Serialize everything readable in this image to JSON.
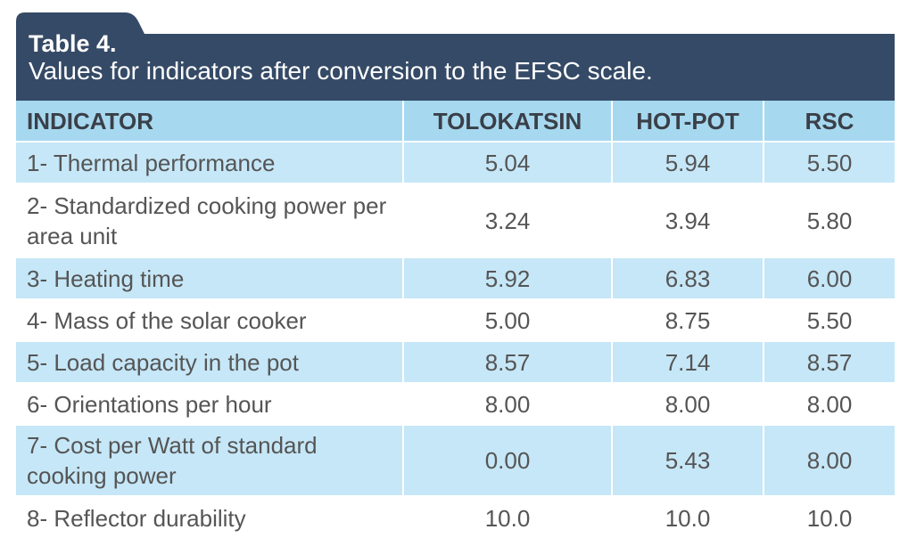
{
  "header": {
    "title": "Table 4.",
    "subtitle": "Values for indicators after conversion to the EFSC scale."
  },
  "table": {
    "columns": [
      "INDICATOR",
      "TOLOKATSIN",
      "HOT-POT",
      "RSC"
    ],
    "rows": [
      [
        "1- Thermal performance",
        "5.04",
        "5.94",
        "5.50"
      ],
      [
        "2- Standardized cooking power per area unit",
        "3.24",
        "3.94",
        "5.80"
      ],
      [
        "3- Heating time",
        "5.92",
        "6.83",
        "6.00"
      ],
      [
        "4- Mass of the solar cooker",
        "5.00",
        "8.75",
        "5.50"
      ],
      [
        "5- Load capacity in the pot",
        "8.57",
        "7.14",
        "8.57"
      ],
      [
        "6- Orientations per hour",
        "8.00",
        "8.00",
        "8.00"
      ],
      [
        "7- Cost per Watt of standard cooking power",
        "0.00",
        "5.43",
        "8.00"
      ],
      [
        "8- Reflector durability",
        "10.0",
        "10.0",
        "10.0"
      ]
    ]
  }
}
